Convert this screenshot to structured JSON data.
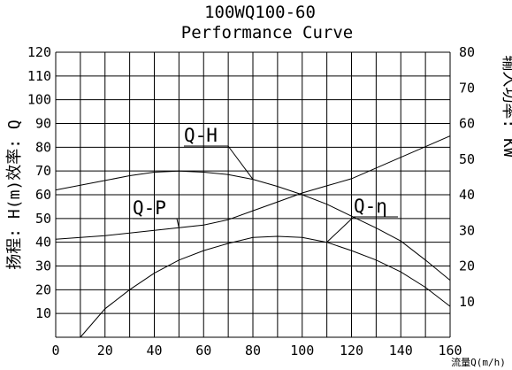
{
  "chart_data": {
    "type": "line",
    "title": "100WQ100-60",
    "subtitle": "Performance Curve",
    "xlabel": "流量Q(m/h)",
    "ylabel_left": "扬程: H(m)效率: Q",
    "ylabel_right": "输入功率: KW",
    "xlim": [
      0,
      160
    ],
    "ylim_left": [
      0,
      120
    ],
    "ylim_right": [
      0,
      80
    ],
    "x_ticks": [
      "0",
      "20",
      "40",
      "60",
      "80",
      "100",
      "120",
      "140",
      "160"
    ],
    "y_left_ticks": [
      "10",
      "20",
      "30",
      "40",
      "50",
      "60",
      "70",
      "80",
      "90",
      "100",
      "110",
      "120"
    ],
    "y_right_ticks": [
      "10",
      "20",
      "30",
      "40",
      "50",
      "60",
      "70",
      "80"
    ],
    "grid": true,
    "series": [
      {
        "name": "Q-H",
        "axis": "left",
        "x": [
          0,
          10,
          20,
          30,
          40,
          50,
          60,
          70,
          80,
          90,
          100,
          110,
          120,
          130,
          140,
          150,
          160
        ],
        "y": [
          62,
          64,
          66,
          68,
          69.5,
          70,
          69.5,
          68.5,
          66.5,
          63.5,
          60,
          56,
          51,
          46,
          40.5,
          32.5,
          24
        ]
      },
      {
        "name": "Q-P",
        "axis": "right",
        "x": [
          0,
          20,
          40,
          60,
          70,
          80,
          90,
          100,
          110,
          120,
          130,
          140,
          150,
          160
        ],
        "y": [
          27.5,
          28.5,
          30,
          31.5,
          33,
          35.5,
          38,
          40.5,
          42.5,
          44.5,
          47.5,
          50.5,
          53.5,
          56.5
        ]
      },
      {
        "name": "Q-η",
        "axis": "left",
        "x": [
          10,
          20,
          30,
          40,
          50,
          60,
          70,
          80,
          90,
          100,
          110,
          120,
          130,
          140,
          150,
          160
        ],
        "y": [
          0,
          12,
          20,
          27,
          32.5,
          36.5,
          39.5,
          42,
          42.5,
          42,
          40,
          36.5,
          32.5,
          27.5,
          21,
          13
        ]
      }
    ],
    "annotations": [
      {
        "label": "Q-H",
        "target_series": "Q-H",
        "at_x": 80
      },
      {
        "label": "Q-P",
        "target_series": "Q-P",
        "at_x": 50
      },
      {
        "label": "Q-η",
        "target_series": "Q-η",
        "at_x": 110
      }
    ]
  }
}
